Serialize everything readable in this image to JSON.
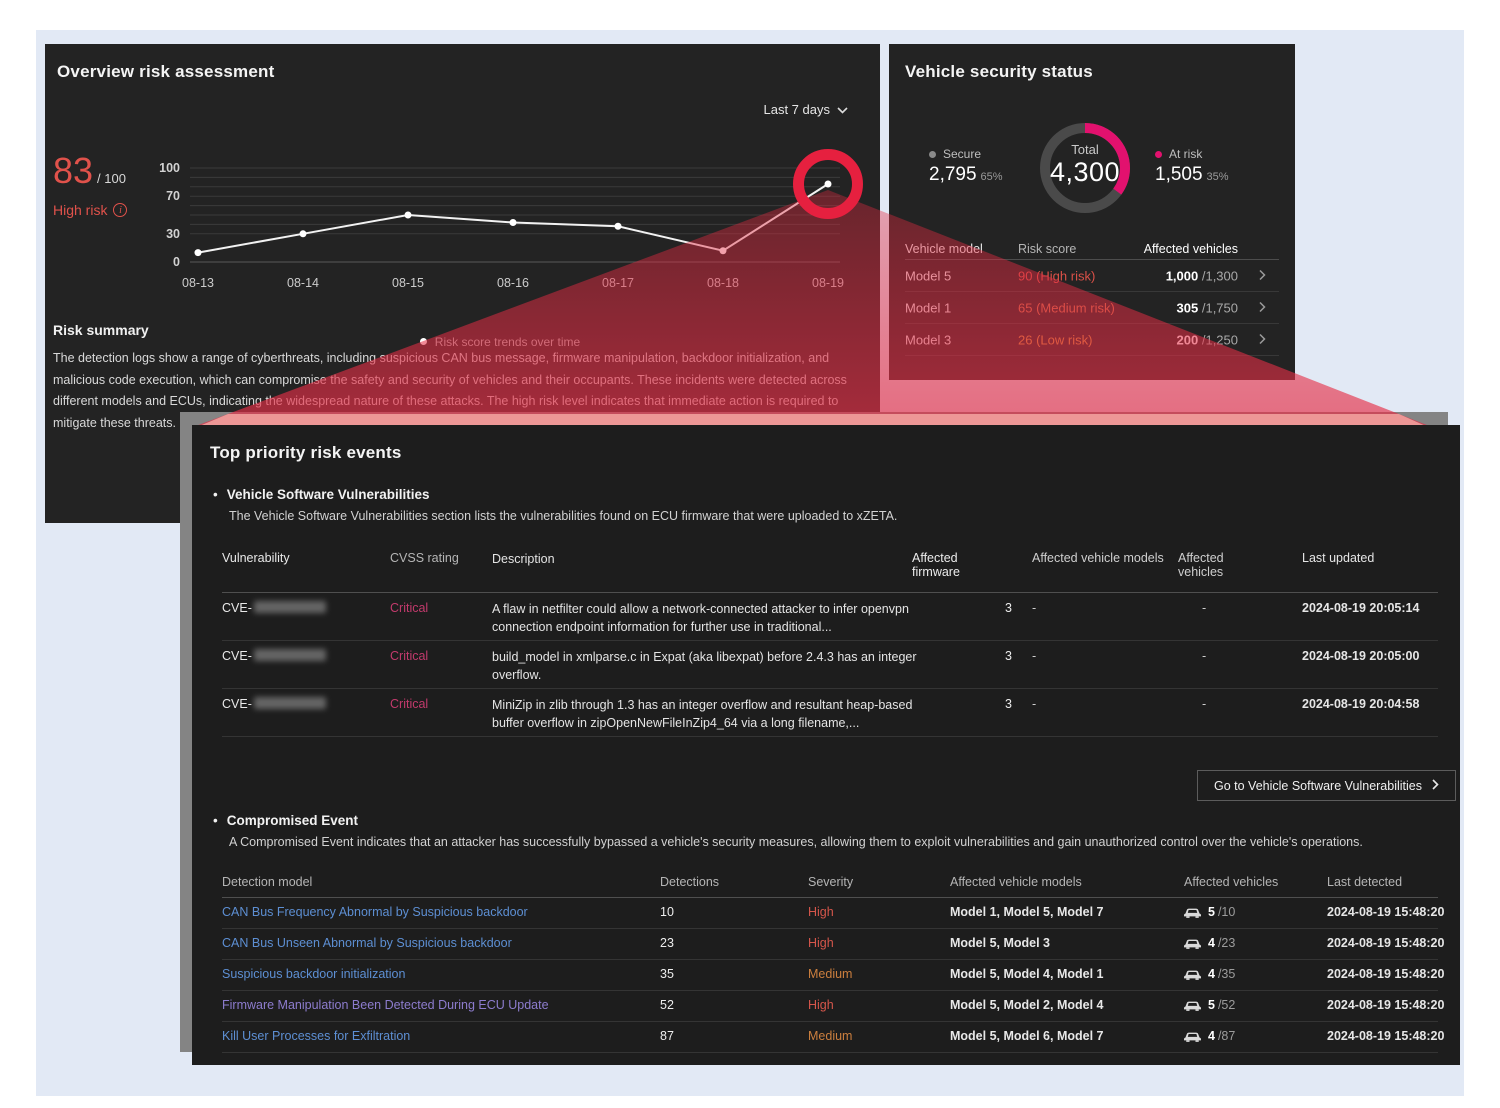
{
  "overview": {
    "title": "Overview risk assessment",
    "period": "Last 7 days",
    "score": "83",
    "score_suffix": "/ 100",
    "risk_level": "High risk",
    "legend": "Risk score trends over time",
    "summary_title": "Risk summary",
    "summary_body": "The detection logs show a range of cyberthreats, including suspicious CAN bus message, firmware manipulation, backdoor initialization, and malicious code execution, which can compromise the safety and security of vehicles and their occupants. These incidents were detected across different models and ECUs, indicating the widespread nature of these attacks. The high risk level indicates that immediate action is required to mitigate these threats."
  },
  "security": {
    "title": "Vehicle security status",
    "donut": {
      "total_label": "Total",
      "total_value": "4,300",
      "secure_label": "Secure",
      "secure_value": "2,795",
      "secure_pct": "65%",
      "at_risk_label": "At risk",
      "at_risk_value": "1,505",
      "at_risk_pct": "35%"
    },
    "headers": [
      "Vehicle model",
      "Risk score",
      "Affected vehicles"
    ],
    "rows": [
      {
        "model": "Model 5",
        "score": "90 (High risk)",
        "affected": "1,000",
        "total": " /1,300"
      },
      {
        "model": "Model 1",
        "score": "65 (Medium risk)",
        "affected": "305",
        "total": " /1,750"
      },
      {
        "model": "Model 3",
        "score": "26 (Low risk)",
        "affected": "200",
        "total": " /1,250"
      }
    ]
  },
  "events": {
    "title": "Top priority risk events",
    "vuln": {
      "heading": "Vehicle Software Vulnerabilities",
      "description": "The Vehicle Software Vulnerabilities section lists the vulnerabilities found on ECU firmware that were uploaded to xZETA.",
      "headers": {
        "vulnerability": "Vulnerability",
        "cvss": "CVSS rating",
        "description": "Description",
        "firmware": "Affected firmware",
        "models": "Affected vehicle models",
        "vehicles": "Affected vehicles",
        "updated": "Last updated"
      },
      "rows": [
        {
          "id_prefix": "CVE-",
          "cvss": "Critical",
          "description": "A flaw in netfilter could allow a network-connected attacker to infer openvpn connection endpoint information for further use in traditional...",
          "firmware": "3",
          "models": "-",
          "vehicles": "-",
          "updated": "2024-08-19 20:05:14"
        },
        {
          "id_prefix": "CVE-",
          "cvss": "Critical",
          "description": "build_model in xmlparse.c in Expat (aka libexpat) before 2.4.3 has an integer overflow.",
          "firmware": "3",
          "models": "-",
          "vehicles": "-",
          "updated": "2024-08-19 20:05:00"
        },
        {
          "id_prefix": "CVE-",
          "cvss": "Critical",
          "description": "MiniZip in zlib through 1.3 has an integer overflow and resultant heap-based buffer overflow in zipOpenNewFileInZip4_64 via a long filename,...",
          "firmware": "3",
          "models": "-",
          "vehicles": "-",
          "updated": "2024-08-19 20:04:58"
        }
      ],
      "button": "Go to Vehicle Software Vulnerabilities"
    },
    "compromised": {
      "heading": "Compromised Event",
      "description": "A Compromised Event indicates that an attacker has successfully bypassed a vehicle's security measures, allowing them to exploit vulnerabilities and gain unauthorized control over the vehicle's operations.",
      "headers": {
        "model": "Detection model",
        "detections": "Detections",
        "severity": "Severity",
        "models": "Affected vehicle models",
        "vehicles": "Affected vehicles",
        "last": "Last detected"
      },
      "rows": [
        {
          "name": "CAN Bus Frequency Abnormal by Suspicious backdoor",
          "detections": "10",
          "severity": "High",
          "models": "Model 1, Model 5, Model 7",
          "vehicles": "5",
          "of": "/10",
          "last": "2024-08-19 15:48:20"
        },
        {
          "name": "CAN Bus Unseen Abnormal by Suspicious backdoor",
          "detections": "23",
          "severity": "High",
          "models": "Model 5, Model 3",
          "vehicles": "4",
          "of": "/23",
          "last": "2024-08-19 15:48:20"
        },
        {
          "name": "Suspicious backdoor initialization",
          "detections": "35",
          "severity": "Medium",
          "models": "Model 5, Model 4, Model 1",
          "vehicles": "4",
          "of": "/35",
          "last": "2024-08-19 15:48:20"
        },
        {
          "name": "Firmware Manipulation Been Detected During ECU Update",
          "detections": "52",
          "severity": "High",
          "models": "Model 5, Model 2, Model 4",
          "vehicles": "5",
          "of": "/52",
          "last": "2024-08-19 15:48:20"
        },
        {
          "name": "Kill User Processes for Exfiltration",
          "detections": "87",
          "severity": "Medium",
          "models": "Model 5, Model 6, Model 7",
          "vehicles": "4",
          "of": "/87",
          "last": "2024-08-19 15:48:20"
        }
      ]
    }
  },
  "chart_data": [
    {
      "type": "line",
      "title": "Risk score trends over time",
      "x": [
        "08-13",
        "08-14",
        "08-15",
        "08-16",
        "08-17",
        "08-18",
        "08-19"
      ],
      "values": [
        10,
        30,
        50,
        42,
        38,
        12,
        83
      ],
      "ylim": [
        0,
        100
      ],
      "yticks": [
        100,
        70,
        30,
        0
      ],
      "gridline_values": [
        100,
        90,
        80,
        70,
        60,
        50,
        40,
        30,
        0
      ],
      "grid": true,
      "legend_position": "bottom",
      "highlight_point": "08-19"
    },
    {
      "type": "pie",
      "title": "Vehicle security status",
      "labels": [
        "Secure",
        "At risk"
      ],
      "values": [
        2795,
        1505
      ],
      "percentages": [
        65,
        35
      ],
      "total": 4300,
      "colors": [
        "#4a4a4a",
        "#e2116e"
      ]
    }
  ],
  "colors": {
    "accent_red": "#e0524b",
    "highlight_ring": "#e6203f",
    "at_risk_pink": "#e2116e",
    "critical_pink": "#c23a6c",
    "severity_high": "#d5564b",
    "severity_medium": "#cc7f3e",
    "link_blue": "#5d8fd3",
    "link_purple": "#8d7cce"
  }
}
